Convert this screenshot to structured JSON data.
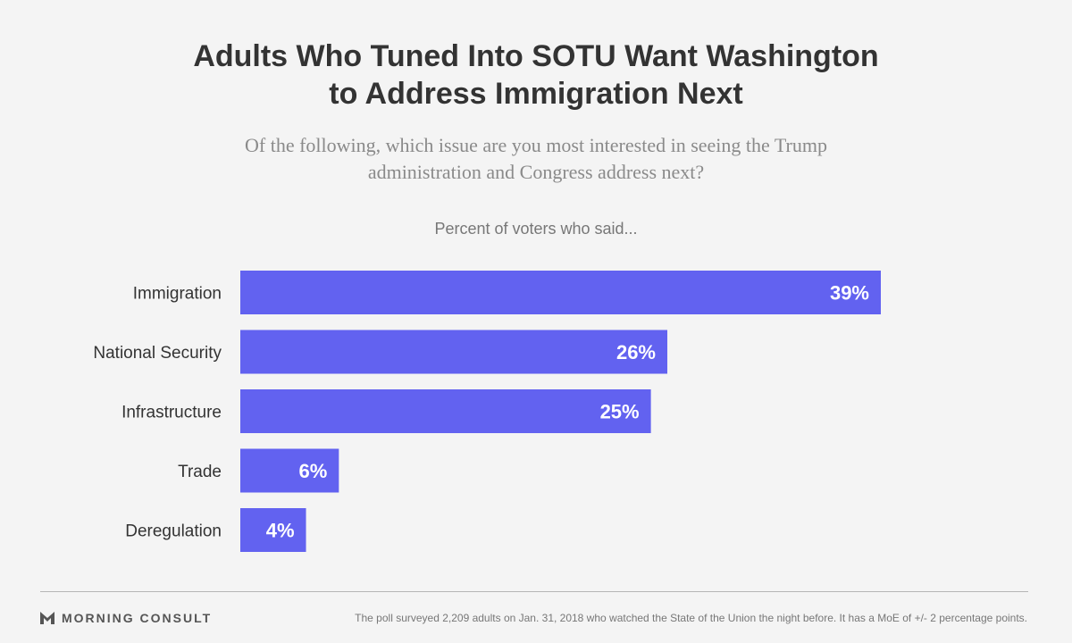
{
  "header": {
    "title_line1": "Adults Who Tuned Into SOTU Want Washington",
    "title_line2": "to Address Immigration Next",
    "question_line1": "Of the following, which issue are you most interested in seeing the Trump",
    "question_line2": "administration and Congress address next?"
  },
  "chart_label": "Percent of voters who said...",
  "chart_data": {
    "type": "bar",
    "orientation": "horizontal",
    "categories": [
      "Immigration",
      "National Security",
      "Infrastructure",
      "Trade",
      "Deregulation"
    ],
    "values": [
      39,
      26,
      25,
      6,
      4
    ],
    "value_labels": [
      "39%",
      "26%",
      "25%",
      "6%",
      "4%"
    ],
    "bar_color": "#6262f0",
    "value_label_color": "#ffffff",
    "xlim": [
      0,
      39
    ],
    "grid": false,
    "legend": "none"
  },
  "footer": {
    "brand": "MORNING CONSULT",
    "note": "The poll surveyed 2,209 adults on Jan. 31, 2018 who watched the State of the Union the night before. It has a MoE of +/- 2 percentage points."
  }
}
